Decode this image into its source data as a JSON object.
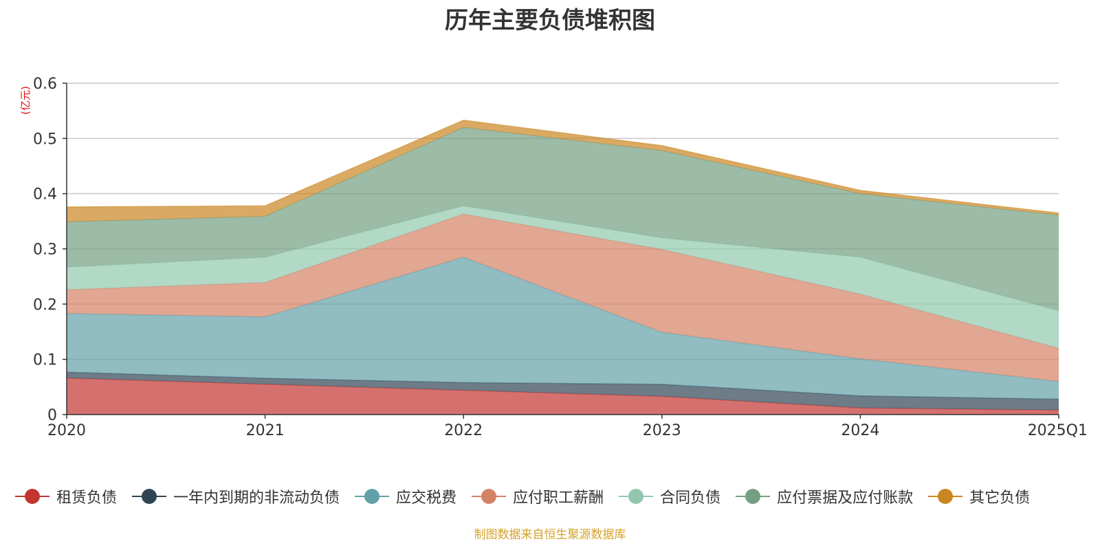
{
  "chart_data": {
    "type": "area",
    "stacked": true,
    "title": "历年主要负债堆积图",
    "ylabel": "(亿元)",
    "xlabel": "",
    "categories": [
      "2020",
      "2021",
      "2022",
      "2023",
      "2024",
      "2025Q1"
    ],
    "ylim": [
      0,
      0.6
    ],
    "yticks": [
      0,
      0.1,
      0.2,
      0.3,
      0.4,
      0.5,
      0.6
    ],
    "ytick_labels": [
      "0",
      "0.1",
      "0.2",
      "0.3",
      "0.4",
      "0.5",
      "0.6"
    ],
    "grid": true,
    "legend_position": "bottom",
    "series": [
      {
        "name": "租赁负债",
        "color": "#c23531",
        "values": [
          0.066,
          0.055,
          0.044,
          0.033,
          0.012,
          0.008
        ]
      },
      {
        "name": "一年内到期的非流动负债",
        "color": "#2f4554",
        "values": [
          0.011,
          0.011,
          0.014,
          0.022,
          0.022,
          0.02
        ]
      },
      {
        "name": "应交税费",
        "color": "#61a0a8",
        "values": [
          0.106,
          0.111,
          0.227,
          0.094,
          0.067,
          0.032
        ]
      },
      {
        "name": "应付职工薪酬",
        "color": "#d48265",
        "values": [
          0.043,
          0.062,
          0.078,
          0.15,
          0.117,
          0.06
        ]
      },
      {
        "name": "合同负债",
        "color": "#91c7ae",
        "values": [
          0.041,
          0.046,
          0.015,
          0.021,
          0.067,
          0.068
        ]
      },
      {
        "name": "应付票据及应付账款",
        "color": "#749f83",
        "values": [
          0.082,
          0.074,
          0.142,
          0.158,
          0.115,
          0.173
        ]
      },
      {
        "name": "其它负债",
        "color": "#ca8622",
        "values": [
          0.027,
          0.019,
          0.013,
          0.009,
          0.006,
          0.004
        ]
      }
    ]
  },
  "source_note": "制图数据来自恒生聚源数据库"
}
